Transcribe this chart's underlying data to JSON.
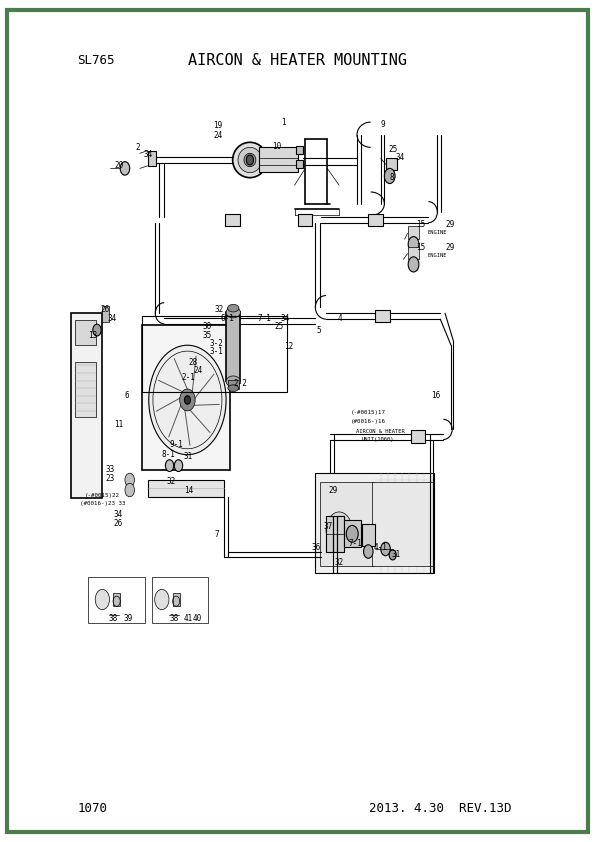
{
  "title": "AIRCON & HEATER MOUNTING",
  "model": "SL765",
  "page_number": "1070",
  "date_rev": "2013. 4.30  REV.13D",
  "bg_color": "#ffffff",
  "border_color": "#4a7c4e",
  "text_color": "#000000",
  "line_color": "#000000",
  "fig_width": 5.95,
  "fig_height": 8.42,
  "dpi": 100,
  "border_thickness": 3,
  "title_fontsize": 11,
  "model_fontsize": 9,
  "footer_fontsize": 9
}
